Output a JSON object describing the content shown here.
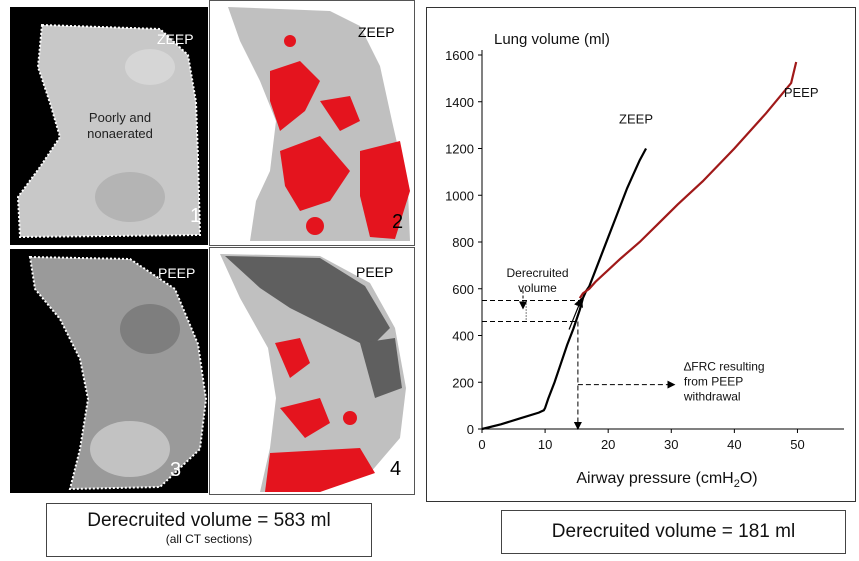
{
  "panels": [
    {
      "label": "ZEEP",
      "number": "1",
      "extra": "Poorly and\nnonaerated"
    },
    {
      "label": "ZEEP",
      "number": "2"
    },
    {
      "label": "PEEP",
      "number": "3"
    },
    {
      "label": "PEEP",
      "number": "4"
    }
  ],
  "colors": {
    "ct_background": "#000000",
    "aerated": "#c0c0c0",
    "poorly_aerated": "#e4141e",
    "hyperinflated": "#5f5f5f",
    "zeep_curve": "#000000",
    "peep_curve": "#a01919"
  },
  "left_box": {
    "main": "Derecruited volume = 583 ml",
    "sub": "(all CT sections)"
  },
  "right_box": {
    "main": "Derecruited volume = 181 ml"
  },
  "chart_data": {
    "type": "line",
    "ylabel": "Lung volume (ml)",
    "xlabel": "Airway pressure (cmH",
    "xlabel_sub": "2",
    "xlabel_end": "O)",
    "xlim": [
      0,
      55
    ],
    "ylim": [
      0,
      1600
    ],
    "xticks": [
      0,
      10,
      20,
      30,
      40,
      50
    ],
    "yticks": [
      0,
      200,
      400,
      600,
      800,
      1000,
      1200,
      1400,
      1600
    ],
    "series": [
      {
        "name": "ZEEP",
        "x": [
          0,
          3,
          6,
          9,
          9.8,
          10,
          10.5,
          11.5,
          12.5,
          13.5,
          14.5,
          15,
          15.5,
          16,
          16.5,
          17,
          18,
          19,
          20,
          21,
          22,
          23,
          24,
          25,
          26
        ],
        "y": [
          0,
          20,
          45,
          70,
          80,
          90,
          130,
          200,
          280,
          360,
          430,
          470,
          510,
          560,
          590,
          610,
          680,
          750,
          820,
          890,
          960,
          1030,
          1090,
          1150,
          1200
        ]
      },
      {
        "name": "PEEP",
        "x": [
          15.5,
          16,
          17,
          18,
          20,
          22,
          25,
          28,
          31,
          35,
          40,
          45,
          49,
          49.8
        ],
        "y": [
          560,
          580,
          600,
          630,
          680,
          730,
          800,
          880,
          960,
          1060,
          1200,
          1350,
          1480,
          1570
        ]
      }
    ],
    "annotations": [
      {
        "text": "Derecruited\nvolume",
        "x": 8.8,
        "y": 650
      },
      {
        "text": "∆FRC resulting\nfrom PEEP\nwithdrawal",
        "x": 32,
        "y": 250
      }
    ],
    "markers": {
      "upper_y": 550,
      "lower_y": 460,
      "frc_x": 15.2,
      "frc_arrow_y": 190
    }
  }
}
